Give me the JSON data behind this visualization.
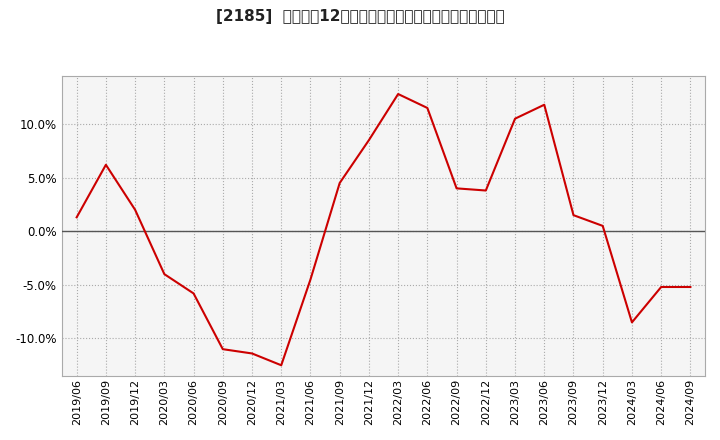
{
  "title": "[2185]  売上高の12か月移動合計の対前年同期増減率の推移",
  "line_color": "#cc0000",
  "background_color": "#ffffff",
  "plot_bg_color": "#f5f5f5",
  "grid_color": "#aaaaaa",
  "zero_line_color": "#555555",
  "ylim": [
    -0.135,
    0.145
  ],
  "yticks": [
    -0.1,
    -0.05,
    0.0,
    0.05,
    0.1
  ],
  "dates": [
    "2019/06",
    "2019/09",
    "2019/12",
    "2020/03",
    "2020/06",
    "2020/09",
    "2020/12",
    "2021/03",
    "2021/06",
    "2021/09",
    "2021/12",
    "2022/03",
    "2022/06",
    "2022/09",
    "2022/12",
    "2023/03",
    "2023/06",
    "2023/09",
    "2023/12",
    "2024/03",
    "2024/06",
    "2024/09"
  ],
  "values": [
    0.013,
    0.062,
    0.02,
    -0.04,
    -0.058,
    -0.11,
    -0.114,
    -0.125,
    -0.045,
    0.045,
    0.085,
    0.128,
    0.115,
    0.04,
    0.038,
    0.105,
    0.118,
    0.015,
    0.005,
    -0.085,
    -0.052,
    -0.052
  ],
  "title_fontsize": 11,
  "tick_fontsize": 8,
  "ytick_fontsize": 8.5
}
